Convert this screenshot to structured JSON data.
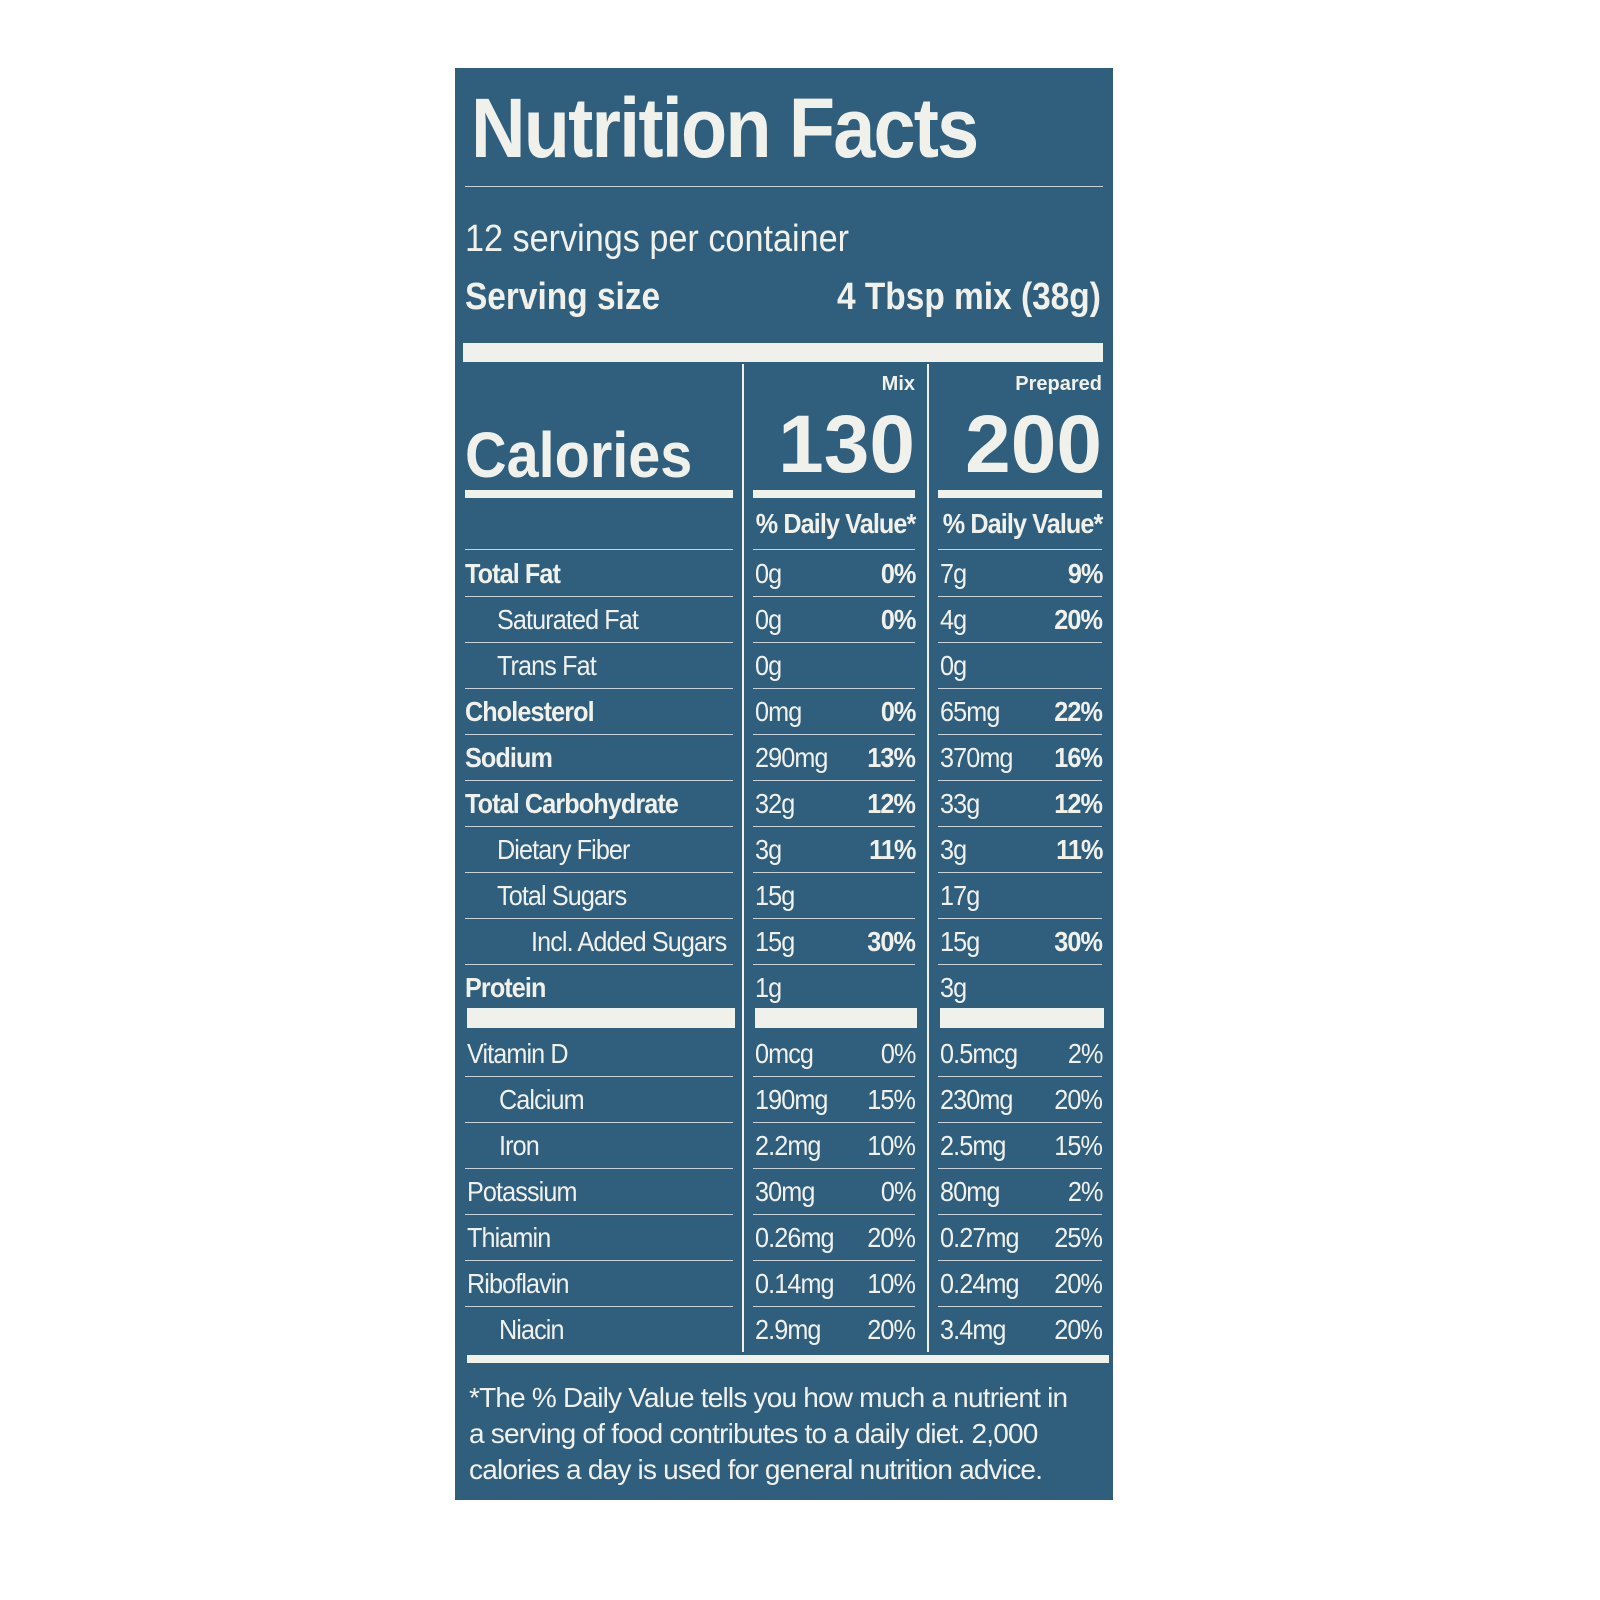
{
  "header": {
    "title": "Nutrition Facts",
    "servings": "12 servings per container",
    "serving_size_label": "Serving size",
    "serving_size_value": "4 Tbsp mix (38g)"
  },
  "columns": [
    {
      "name": "Mix",
      "calories": "130",
      "dv_header": "% Daily Value*"
    },
    {
      "name": "Prepared",
      "calories": "200",
      "dv_header": "% Daily Value*"
    }
  ],
  "calories_label": "Calories",
  "nutrients": [
    {
      "name": "Total Fat",
      "mix": [
        "0g",
        "0%"
      ],
      "prepared": [
        "7g",
        "9%"
      ]
    },
    {
      "name": "Saturated Fat",
      "mix": [
        "0g",
        "0%"
      ],
      "prepared": [
        "4g",
        "20%"
      ]
    },
    {
      "name": "Trans Fat",
      "mix": [
        "0g"
      ],
      "prepared": [
        "0g"
      ]
    },
    {
      "name": "Cholesterol",
      "mix": [
        "0mg",
        "0%"
      ],
      "prepared": [
        "65mg",
        "22%"
      ]
    },
    {
      "name": "Sodium",
      "mix": [
        "290mg",
        "13%"
      ],
      "prepared": [
        "370mg",
        "16%"
      ]
    },
    {
      "name": "Total Carbohydrate",
      "mix": [
        "32g",
        "12%"
      ],
      "prepared": [
        "33g",
        "12%"
      ]
    },
    {
      "name": "Dietary Fiber",
      "mix": [
        "3g",
        "11%"
      ],
      "prepared": [
        "3g",
        "11%"
      ]
    },
    {
      "name": "Total Sugars",
      "mix": [
        "15g"
      ],
      "prepared": [
        "17g"
      ]
    },
    {
      "name": "Incl. Added Sugars",
      "mix": [
        "15g",
        "30%"
      ],
      "prepared": [
        "15g",
        "30%"
      ]
    },
    {
      "name": "Protein",
      "mix": [
        "1g"
      ],
      "prepared": [
        "3g"
      ]
    }
  ],
  "vitamins": [
    {
      "name": "Vitamin D",
      "mix": [
        "0mcg",
        "0%"
      ],
      "prepared": [
        "0.5mcg",
        "2%"
      ]
    },
    {
      "name": "Calcium",
      "mix": [
        "190mg",
        "15%"
      ],
      "prepared": [
        "230mg",
        "20%"
      ]
    },
    {
      "name": "Iron",
      "mix": [
        "2.2mg",
        "10%"
      ],
      "prepared": [
        "2.5mg",
        "15%"
      ]
    },
    {
      "name": "Potassium",
      "mix": [
        "30mg",
        "0%"
      ],
      "prepared": [
        "80mg",
        "2%"
      ]
    },
    {
      "name": "Thiamin",
      "mix": [
        "0.26mg",
        "20%"
      ],
      "prepared": [
        "0.27mg",
        "25%"
      ]
    },
    {
      "name": "Riboflavin",
      "mix": [
        "0.14mg",
        "10%"
      ],
      "prepared": [
        "0.24mg",
        "20%"
      ]
    },
    {
      "name": "Niacin",
      "mix": [
        "2.9mg",
        "20%"
      ],
      "prepared": [
        "3.4mg",
        "20%"
      ]
    }
  ],
  "footnote": "*The % Daily Value tells you how much a nutrient in a serving of food contributes to a daily diet. 2,000 calories a day is used for general nutrition advice."
}
